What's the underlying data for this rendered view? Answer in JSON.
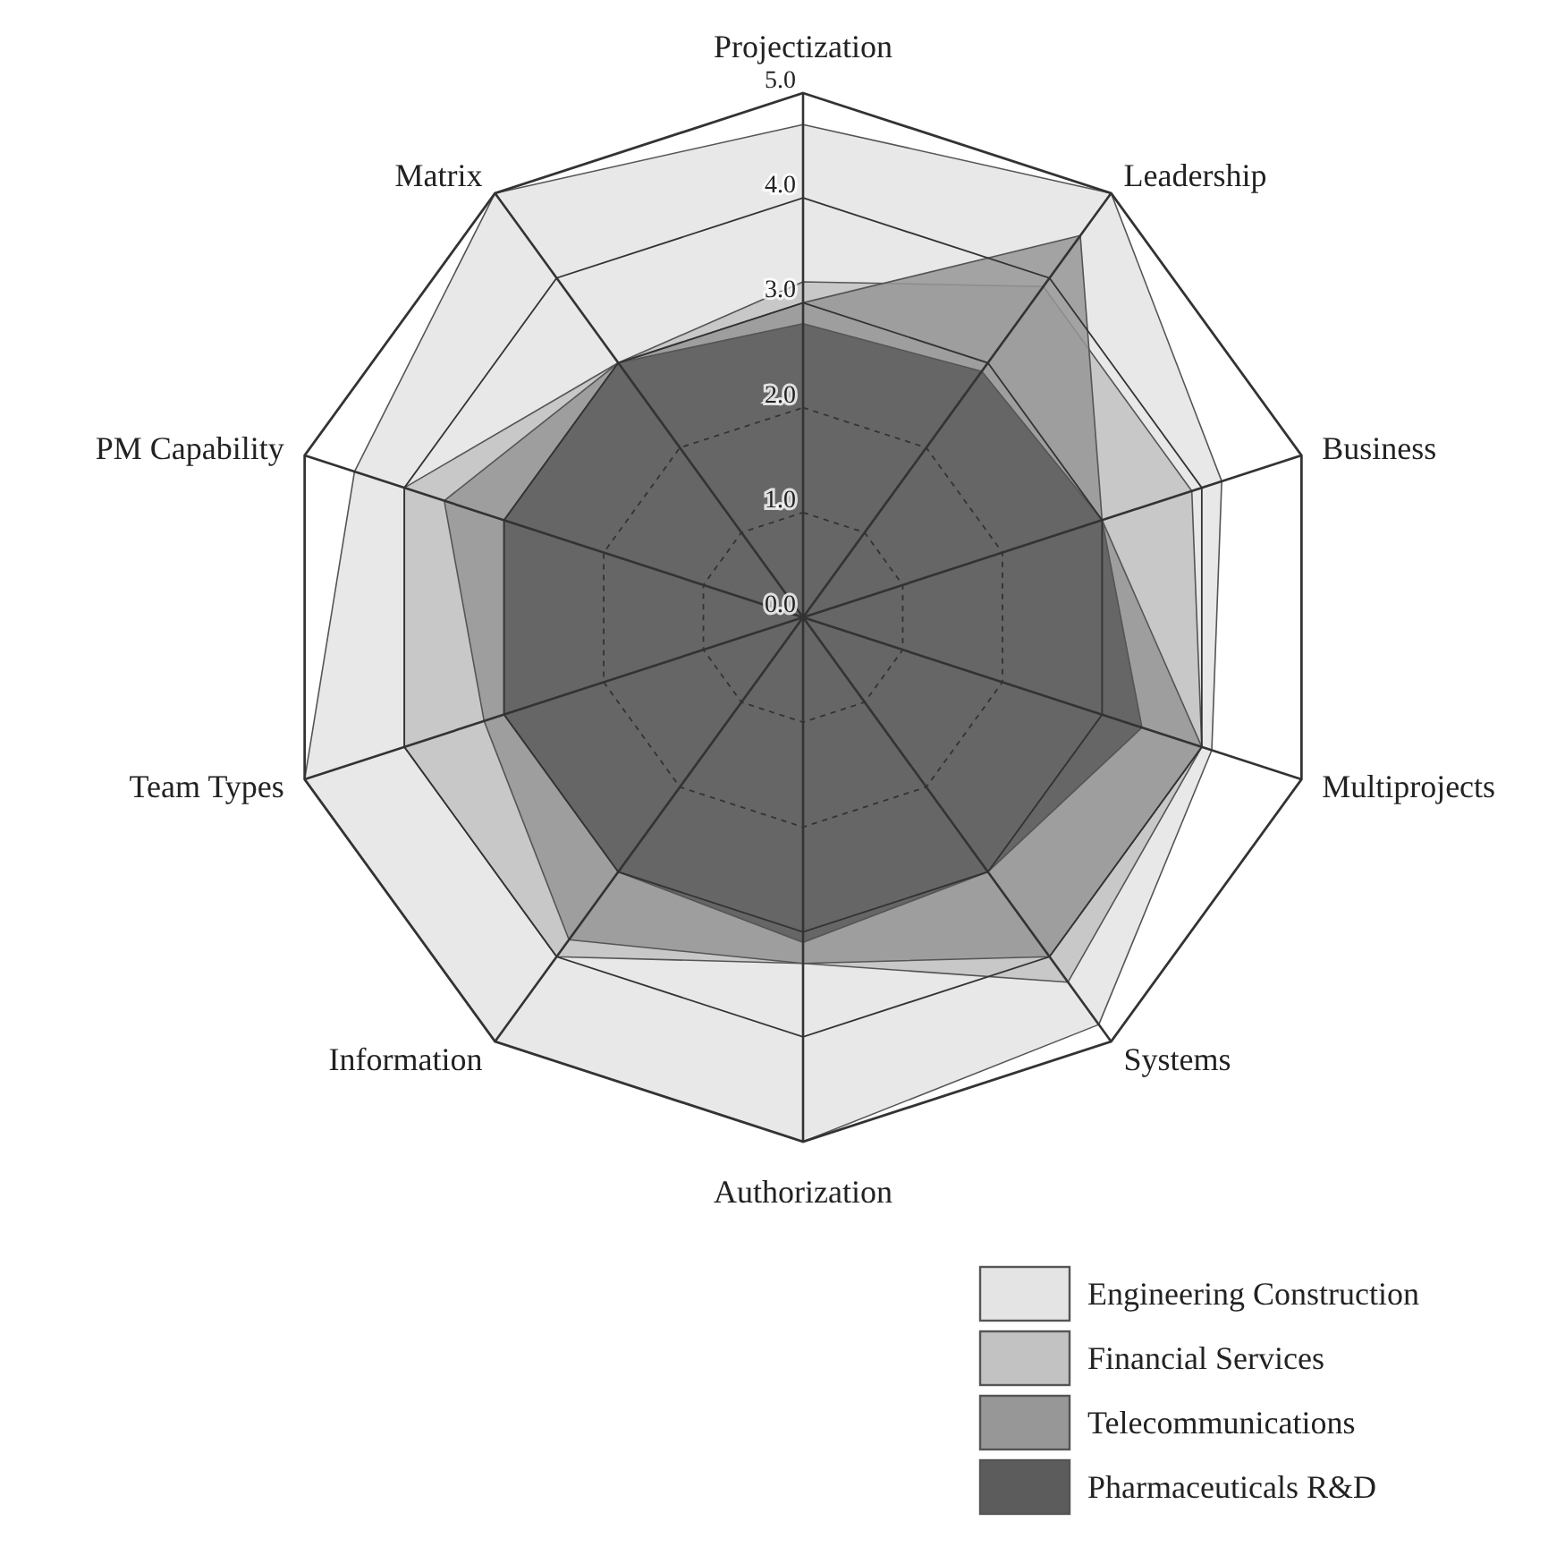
{
  "chart_data": {
    "type": "radar",
    "categories": [
      "Projectization",
      "Leadership",
      "Business",
      "Multiprojects",
      "Systems",
      "Authorization",
      "Information",
      "Team Types",
      "PM Capability",
      "Matrix"
    ],
    "ylim": [
      0,
      5
    ],
    "yticks": [
      {
        "value": 0,
        "label": "0.0"
      },
      {
        "value": 1,
        "label": "1.0"
      },
      {
        "value": 2,
        "label": "2.0"
      },
      {
        "value": 3,
        "label": "3.0"
      },
      {
        "value": 4,
        "label": "4.0"
      },
      {
        "value": 5,
        "label": "5.0"
      }
    ],
    "legend": "bottom right",
    "series": [
      {
        "name": "Engineering Construction",
        "color": "#e4e4e4",
        "values": [
          4.7,
          5.0,
          4.2,
          4.1,
          4.8,
          5.0,
          5.0,
          5.0,
          4.5,
          5.0
        ]
      },
      {
        "name": "Financial Services",
        "color": "#c2c2c2",
        "values": [
          3.2,
          3.9,
          3.9,
          4.0,
          4.3,
          3.3,
          4.0,
          4.0,
          4.0,
          3.0
        ]
      },
      {
        "name": "Telecommunications",
        "color": "#979797",
        "values": [
          3.0,
          4.5,
          3.0,
          4.0,
          4.0,
          3.3,
          3.8,
          3.2,
          3.6,
          3.0
        ]
      },
      {
        "name": "Pharmaceuticals R&D",
        "color": "#5c5c5c",
        "values": [
          2.8,
          2.9,
          3.0,
          3.4,
          3.0,
          3.1,
          3.0,
          3.0,
          3.0,
          3.0
        ]
      }
    ]
  }
}
